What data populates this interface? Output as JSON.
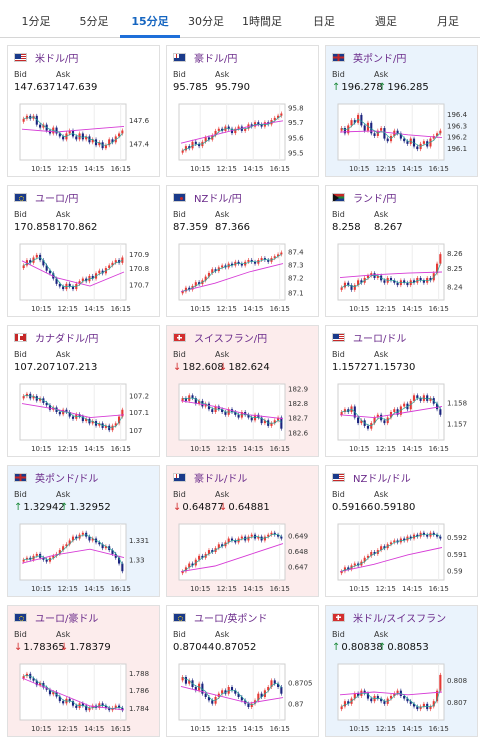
{
  "tabs": [
    {
      "label": "1分足",
      "active": false
    },
    {
      "label": "5分足",
      "active": false
    },
    {
      "label": "15分足",
      "active": true
    },
    {
      "label": "30分足",
      "active": false
    },
    {
      "label": "1時間足",
      "active": false
    },
    {
      "label": "日足",
      "active": false
    },
    {
      "label": "週足",
      "active": false
    },
    {
      "label": "月足",
      "active": false
    }
  ],
  "labels": {
    "bid": "Bid",
    "ask": "Ask"
  },
  "time_labels": [
    "10:15",
    "12:15",
    "14:15",
    "16:15"
  ],
  "pairs": [
    {
      "name": "米ドル/円",
      "flag": "us",
      "trend": "none",
      "bid": "147.637",
      "ask": "147.639",
      "ticks": [
        "147.6",
        "147.4"
      ],
      "tick_pos": [
        0.3,
        0.72
      ],
      "candles": "40,41,40,41,38,37,38,36,35,37,35,34,33,35,36,34,33,35,33,34,32,33,31,32,30,31,33,32,34,35,36",
      "ma": [
        0.45,
        0.5,
        0.45,
        0.4
      ]
    },
    {
      "name": "豪ドル/円",
      "flag": "au",
      "trend": "none",
      "bid": "95.785",
      "ask": "95.790",
      "ticks": [
        "95.8",
        "95.7",
        "95.6",
        "95.5"
      ],
      "tick_pos": [
        0.08,
        0.34,
        0.62,
        0.88
      ],
      "candles": "20,22,21,24,23,22,24,26,25,27,29,30,29,31,30,28,30,31,29,30,32,31,33,32,31,33,32,34,35,36,37",
      "ma": [
        0.7,
        0.55,
        0.4,
        0.3
      ]
    },
    {
      "name": "英ポンド/円",
      "flag": "gb",
      "trend": "up",
      "bid": "196.278",
      "ask": "196.285",
      "ticks": [
        "196.4",
        "196.3",
        "196.2",
        "196.1"
      ],
      "tick_pos": [
        0.2,
        0.4,
        0.6,
        0.8
      ],
      "candles": "35,33,36,38,37,40,36,34,37,33,32,34,35,31,30,32,34,33,31,30,29,31,28,27,29,30,28,31,32,33,34",
      "ma": [
        0.5,
        0.48,
        0.55,
        0.6
      ]
    },
    {
      "name": "ユーロ/円",
      "flag": "eu",
      "trend": "none",
      "bid": "170.858",
      "ask": "170.862",
      "ticks": [
        "170.9",
        "170.8",
        "170.7"
      ],
      "tick_pos": [
        0.2,
        0.45,
        0.74
      ],
      "candles": "38,40,39,41,42,40,38,36,35,33,31,30,29,31,30,29,31,32,33,32,34,33,35,36,35,37,38,39,40,39,41",
      "ma": [
        0.3,
        0.6,
        0.75,
        0.5
      ]
    },
    {
      "name": "NZドル/円",
      "flag": "nz",
      "trend": "none",
      "bid": "87.359",
      "ask": "87.366",
      "ticks": [
        "87.4",
        "87.3",
        "87.2",
        "87.1"
      ],
      "tick_pos": [
        0.15,
        0.38,
        0.62,
        0.88
      ],
      "candles": "20,22,21,23,25,24,26,28,30,32,31,33,34,33,35,34,36,35,34,36,37,36,35,37,38,37,36,38,39,40,41",
      "ma": [
        0.85,
        0.7,
        0.5,
        0.35
      ]
    },
    {
      "name": "ランド/円",
      "flag": "za",
      "trend": "none",
      "bid": "8.258",
      "ask": "8.267",
      "ticks": [
        "8.26",
        "8.25",
        "8.24"
      ],
      "tick_pos": [
        0.18,
        0.45,
        0.78
      ],
      "candles": "24,26,25,23,25,27,26,28,29,30,28,29,27,26,28,27,26,25,27,26,25,27,26,28,27,26,28,27,30,34,38",
      "ma": [
        0.6,
        0.55,
        0.52,
        0.5
      ]
    },
    {
      "name": "カナダドル/円",
      "flag": "ca",
      "trend": "none",
      "bid": "107.207",
      "ask": "107.213",
      "ticks": [
        "107.2",
        "107.1",
        "107"
      ],
      "tick_pos": [
        0.22,
        0.52,
        0.84
      ],
      "candles": "40,41,39,40,38,39,37,36,34,35,33,32,34,33,31,30,32,31,29,30,28,29,27,28,26,27,25,27,28,31,34",
      "ma": [
        0.35,
        0.45,
        0.6,
        0.55
      ]
    },
    {
      "name": "スイスフラン/円",
      "flag": "ch",
      "trend": "down",
      "bid": "182.608",
      "ask": "182.624",
      "ticks": [
        "182.9",
        "182.8",
        "182.7",
        "182.6"
      ],
      "tick_pos": [
        0.1,
        0.36,
        0.62,
        0.88
      ],
      "candles": "38,37,39,38,36,37,35,36,34,33,35,34,33,32,34,33,32,31,33,32,31,30,32,31,29,30,28,29,30,31,27",
      "ma": [
        0.3,
        0.4,
        0.55,
        0.62
      ]
    },
    {
      "name": "ユーロ/ドル",
      "flag": "us",
      "trend": "none",
      "bid": "1.15727",
      "ask": "1.15730",
      "ticks": [
        "1.158",
        "1.157"
      ],
      "tick_pos": [
        0.35,
        0.72
      ],
      "candles": "32,33,32,34,30,28,29,27,26,28,30,31,29,28,30,32,33,31,34,35,33,36,38,37,36,38,36,37,35,33,31",
      "ma": [
        0.55,
        0.6,
        0.5,
        0.4
      ]
    },
    {
      "name": "英ポンド/ドル",
      "flag": "gb",
      "trend": "up",
      "bid": "1.32942",
      "ask": "1.32952",
      "ticks": [
        "1.331",
        "1.33"
      ],
      "tick_pos": [
        0.3,
        0.65
      ],
      "candles": "30,31,30,32,33,31,30,29,31,32,33,35,37,38,40,42,41,43,44,42,40,41,39,38,36,37,35,33,31,28,24",
      "ma": [
        0.7,
        0.55,
        0.45,
        0.6
      ]
    },
    {
      "name": "豪ドル/ドル",
      "flag": "au",
      "trend": "down",
      "bid": "0.64877",
      "ask": "0.64881",
      "ticks": [
        "0.649",
        "0.648",
        "0.647"
      ],
      "tick_pos": [
        0.22,
        0.5,
        0.78
      ],
      "candles": "18,20,22,21,24,26,25,27,29,28,30,32,31,33,35,34,33,35,36,34,36,37,35,36,34,36,37,38,37,36,35",
      "ma": [
        0.85,
        0.75,
        0.55,
        0.35
      ]
    },
    {
      "name": "NZドル/ドル",
      "flag": "us",
      "trend": "none",
      "bid": "0.59166",
      "ask": "0.59180",
      "ticks": [
        "0.592",
        "0.591",
        "0.59"
      ],
      "tick_pos": [
        0.25,
        0.55,
        0.85
      ],
      "candles": "20,22,21,23,24,23,25,27,28,30,29,31,33,32,34,35,36,35,37,36,38,37,39,38,40,39,38,40,39,38,37",
      "ma": [
        0.85,
        0.72,
        0.55,
        0.42
      ]
    },
    {
      "name": "ユーロ/豪ドル",
      "flag": "eu",
      "trend": "down",
      "bid": "1.78365",
      "ask": "1.78379",
      "ticks": [
        "1.788",
        "1.786",
        "1.784"
      ],
      "tick_pos": [
        0.18,
        0.48,
        0.8
      ],
      "candles": "42,43,41,40,38,39,37,36,34,35,33,31,30,32,31,29,28,30,29,27,28,29,28,30,29,28,27,28,29,28,27",
      "ma": [
        0.25,
        0.5,
        0.75,
        0.82
      ]
    },
    {
      "name": "ユーロ/英ポンド",
      "flag": "eu",
      "trend": "none",
      "bid": "0.87044",
      "ask": "0.87052",
      "ticks": [
        "0.8705",
        "0.87"
      ],
      "tick_pos": [
        0.35,
        0.72
      ],
      "candles": "36,34,35,33,32,34,31,30,29,28,30,31,32,31,33,32,31,30,29,28,27,28,29,31,30,32,33,35,34,33,31",
      "ma": [
        0.4,
        0.55,
        0.7,
        0.6
      ]
    },
    {
      "name": "米ドル/スイスフラン",
      "flag": "ch",
      "trend": "up",
      "bid": "0.80838",
      "ask": "0.80853",
      "ticks": [
        "0.808",
        "0.807"
      ],
      "tick_pos": [
        0.3,
        0.7
      ],
      "candles": "28,30,29,31,33,32,34,33,31,30,32,31,30,29,31,32,33,34,32,31,30,29,28,27,28,29,27,28,30,34,40",
      "ma": [
        0.55,
        0.5,
        0.55,
        0.5
      ]
    }
  ]
}
